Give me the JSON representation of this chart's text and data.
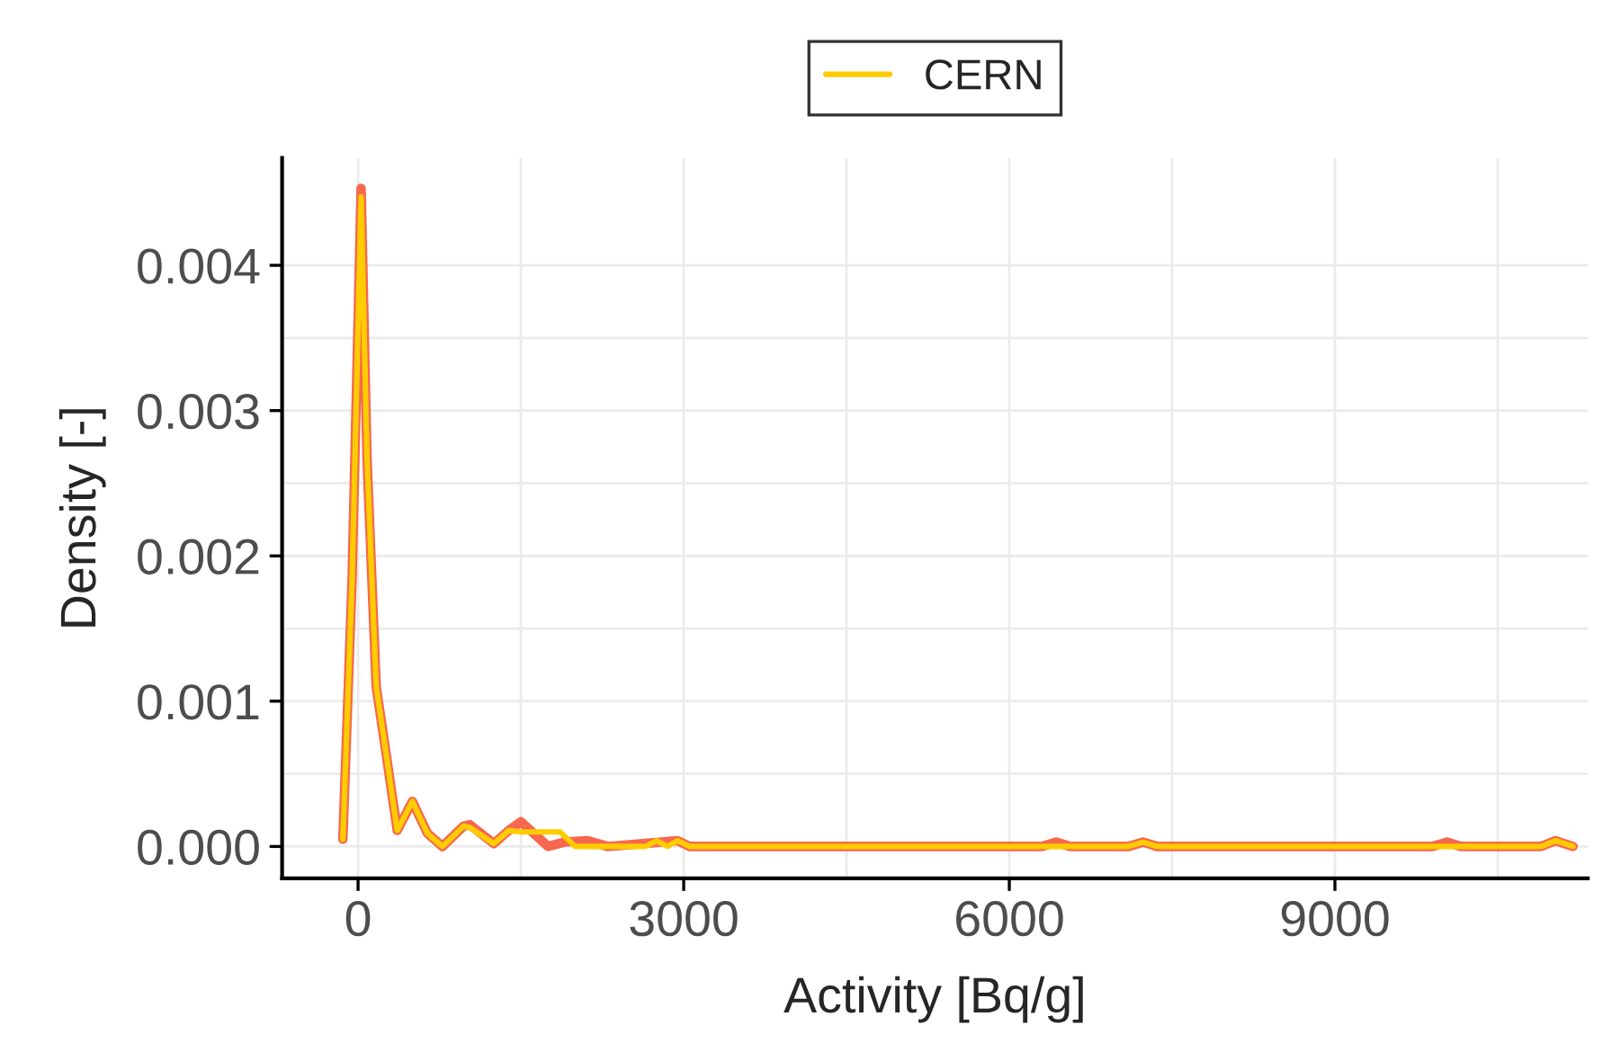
{
  "chart_data": {
    "type": "line",
    "xlabel": "Activity [Bq/g]",
    "ylabel": "Density [-]",
    "xlim": [
      -700,
      11330
    ],
    "ylim": [
      -0.00022,
      0.00474
    ],
    "xticks": [
      0,
      3000,
      6000,
      9000
    ],
    "yticks": [
      {
        "value": 0,
        "label": "0.000"
      },
      {
        "value": 0.001,
        "label": "0.001"
      },
      {
        "value": 0.002,
        "label": "0.002"
      },
      {
        "value": 0.003,
        "label": "0.003"
      },
      {
        "value": 0.004,
        "label": "0.004"
      }
    ],
    "grid": true,
    "legend": "top",
    "line_style": "solid",
    "marker": "none",
    "series": [
      {
        "color": "#f8674f",
        "x": [
          -140,
          -55,
          28,
          83,
          167,
          250,
          361,
          500,
          639,
          778,
          972,
          1028,
          1250,
          1389,
          1500,
          1750,
          1900,
          2111,
          2300,
          2944,
          3056,
          6300,
          6433,
          6560,
          7100,
          7233,
          7360,
          9900,
          10033,
          10160,
          10900,
          11033,
          11194
        ],
        "values": [
          5e-05,
          0.00184,
          0.00453,
          0.00266,
          0.0011,
          0.00068,
          0.00011,
          0.00031,
          9e-05,
          0.0,
          0.00014,
          0.00015,
          2e-05,
          0.00011,
          0.00017,
          0.0,
          3e-05,
          4e-05,
          0.0,
          4e-05,
          0.0,
          0.0,
          3e-05,
          0.0,
          0.0,
          3e-05,
          0.0,
          0.0,
          3e-05,
          0.0,
          0.0,
          4e-05,
          0.0
        ]
      },
      {
        "name": "CERN",
        "color": "#ffcc00",
        "x": [
          -140,
          -55,
          28,
          83,
          167,
          250,
          361,
          500,
          639,
          778,
          972,
          1028,
          1250,
          1389,
          1500,
          1861,
          2000,
          2650,
          2750,
          2850,
          2944,
          3056,
          7100,
          7233,
          7360,
          10900,
          11033,
          11194
        ],
        "values": [
          5e-05,
          0.00184,
          0.00447,
          0.00266,
          0.0011,
          0.00068,
          0.00011,
          0.00031,
          9e-05,
          0.0,
          0.00014,
          0.00013,
          2e-05,
          0.00011,
          0.0001,
          0.0001,
          0.0,
          0.0,
          4e-05,
          0.0,
          4e-05,
          0.0,
          0.0,
          3e-05,
          0.0,
          0.0,
          4e-05,
          0.0
        ]
      }
    ]
  }
}
